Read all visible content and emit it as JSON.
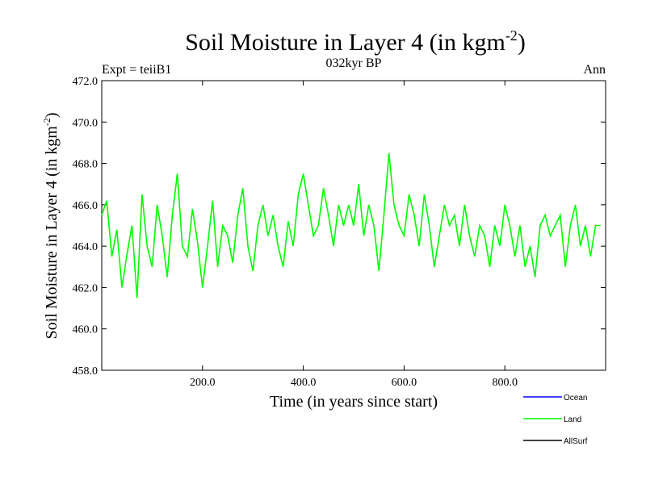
{
  "chart_data": {
    "type": "line",
    "title": "Soil Moisture in Layer 4 (in kgm",
    "title_sup": "-2",
    "title_end": ")",
    "subtitle_left": "Expt = teiiB1",
    "subtitle_center": "032kyr BP",
    "subtitle_right": "Ann",
    "xlabel": "Time (in years since start)",
    "ylabel": "Soil Moisture in Layer 4 (in kgm",
    "ylabel_sup": "-2",
    "ylabel_end": ")",
    "xlim": [
      0,
      1000
    ],
    "ylim": [
      458,
      472
    ],
    "x_ticks": [
      200,
      400,
      600,
      800
    ],
    "x_tick_labels": [
      "200.0",
      "400.0",
      "600.0",
      "800.0"
    ],
    "y_ticks": [
      458,
      460,
      462,
      464,
      466,
      468,
      470,
      472
    ],
    "y_tick_labels": [
      "458.0",
      "460.0",
      "462.0",
      "464.0",
      "466.0",
      "468.0",
      "470.0",
      "472.0"
    ],
    "legend_position": "bottom-right",
    "series": [
      {
        "name": "Ocean",
        "color": "#0000ff",
        "values": []
      },
      {
        "name": "Land",
        "color": "#00ff00",
        "x_start": 0,
        "x_step": 10,
        "values": [
          465.5,
          466.2,
          463.5,
          464.8,
          462.0,
          463.6,
          465.0,
          461.5,
          466.5,
          464.0,
          463.0,
          466.0,
          464.5,
          462.5,
          465.5,
          467.5,
          464.0,
          463.5,
          465.8,
          464.2,
          462.0,
          464.0,
          466.2,
          463.0,
          465.0,
          464.5,
          463.2,
          465.5,
          466.8,
          464.0,
          462.8,
          465.0,
          466.0,
          464.5,
          465.5,
          464.0,
          463.0,
          465.2,
          464.0,
          466.5,
          467.5,
          466.0,
          464.5,
          465.0,
          466.8,
          465.5,
          464.0,
          466.0,
          465.0,
          466.0,
          465.0,
          467.0,
          464.5,
          466.0,
          465.0,
          462.8,
          465.5,
          468.5,
          466.0,
          465.0,
          464.5,
          466.5,
          465.5,
          464.0,
          466.5,
          465.0,
          463.0,
          464.5,
          466.0,
          465.0,
          465.5,
          464.0,
          466.0,
          464.5,
          463.5,
          465.0,
          464.5,
          463.0,
          465.0,
          464.0,
          466.0,
          465.0,
          463.5,
          465.0,
          463.0,
          464.0,
          462.5,
          465.0,
          465.5,
          464.5,
          465.0,
          465.5,
          463.0,
          465.0,
          466.0,
          464.0,
          465.0,
          463.5,
          465.0,
          465.0
        ]
      },
      {
        "name": "AllSurf",
        "color": "#000000",
        "values": []
      }
    ]
  }
}
